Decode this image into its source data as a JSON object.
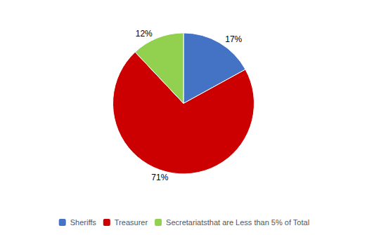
{
  "chart_data": {
    "type": "pie",
    "categories": [
      "Sheriffs",
      "Treasurer",
      "Secretariatsthat are Less than 5% of Total"
    ],
    "values": [
      17,
      71,
      12
    ],
    "value_labels": [
      "17%",
      "71%",
      "12%"
    ],
    "data_labels": true,
    "colors": [
      "#4472C4",
      "#CC0000",
      "#92D050"
    ],
    "legend": "bottom"
  }
}
